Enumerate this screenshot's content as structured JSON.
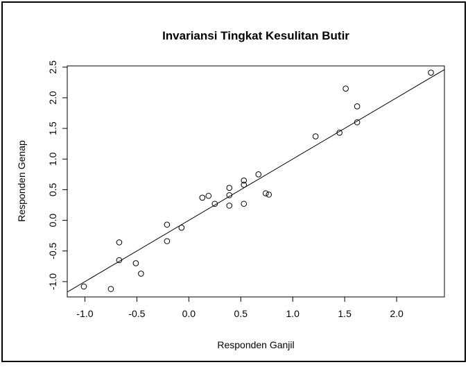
{
  "chart_data": {
    "type": "scatter",
    "title": "Invariansi Tingkat Kesulitan Butir",
    "xlabel": "Responden Ganjil",
    "ylabel": "Responden Genap",
    "x": [
      -1.01,
      -0.75,
      -0.67,
      -0.67,
      -0.51,
      -0.46,
      -0.21,
      -0.21,
      -0.07,
      0.13,
      0.19,
      0.25,
      0.39,
      0.39,
      0.39,
      0.53,
      0.53,
      0.53,
      0.67,
      0.74,
      0.77,
      1.22,
      1.45,
      1.51,
      1.62,
      1.62,
      2.33
    ],
    "values": [
      -1.08,
      -1.12,
      -0.36,
      -0.65,
      -0.7,
      -0.87,
      -0.07,
      -0.34,
      -0.12,
      0.37,
      0.4,
      0.27,
      0.53,
      0.41,
      0.24,
      0.65,
      0.58,
      0.27,
      0.75,
      0.44,
      0.42,
      1.37,
      1.43,
      2.15,
      1.86,
      1.6,
      2.41
    ],
    "color": "#000000",
    "fit": {
      "intercept": 0,
      "slope": 1.0
    },
    "xlim": [
      -1.17,
      2.46
    ],
    "ylim": [
      -1.25,
      2.52
    ],
    "xticks": [
      {
        "value": -1,
        "label": "-1.0"
      },
      -0.5,
      {
        "value": 0,
        "label": "0.0"
      },
      0.5,
      {
        "value": 1,
        "label": "1.0"
      },
      1.5,
      {
        "value": 2,
        "label": "2.0"
      }
    ],
    "yticks": [
      {
        "value": -1,
        "label": "-1.0"
      },
      -0.5,
      {
        "value": 0,
        "label": "0.0"
      },
      0.5,
      {
        "value": 1,
        "label": "1.0"
      },
      1.5,
      {
        "value": 2,
        "label": "2.0"
      },
      2.5
    ]
  }
}
